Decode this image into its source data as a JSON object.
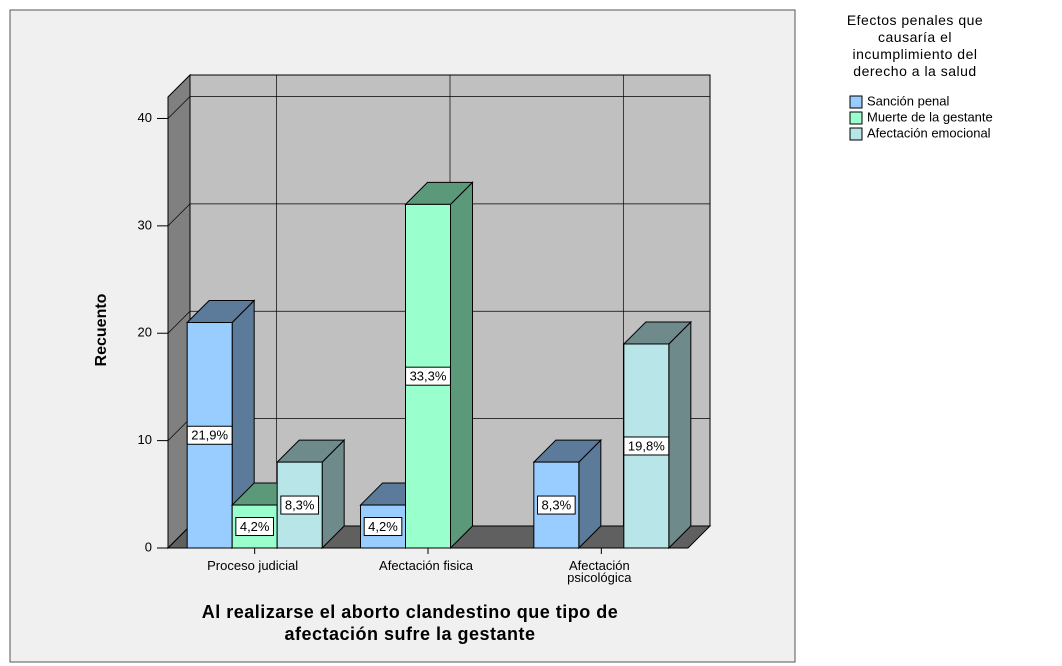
{
  "chart_data": {
    "type": "bar3d",
    "categories": [
      "Proceso judicial",
      "Afectación fisica",
      "Afectación psicológica"
    ],
    "series": [
      {
        "name": "Sanción penal",
        "color": "#99ccff",
        "values": [
          21,
          4,
          8
        ],
        "value_labels": [
          "21,9%",
          "4,2%",
          "8,3%"
        ]
      },
      {
        "name": "Muerte de la gestante",
        "color": "#99ffcc",
        "values": [
          4,
          32,
          null
        ],
        "value_labels": [
          "4,2%",
          "33,3%",
          null
        ]
      },
      {
        "name": "Afectación emocional",
        "color": "#b8e6e8",
        "values": [
          8,
          null,
          19
        ],
        "value_labels": [
          "8,3%",
          null,
          "19,8%"
        ]
      }
    ],
    "ylabel": "Recuento",
    "xlabel": "Al realizarse el aborto clandestino que tipo de afectación sufre la gestante",
    "legend_title": "Efectos penales que causaría el incumplimiento del derecho a la salud",
    "ylim": [
      0,
      42
    ],
    "yticks": [
      0,
      10,
      20,
      30,
      40
    ],
    "grid": true,
    "legend": "right"
  }
}
